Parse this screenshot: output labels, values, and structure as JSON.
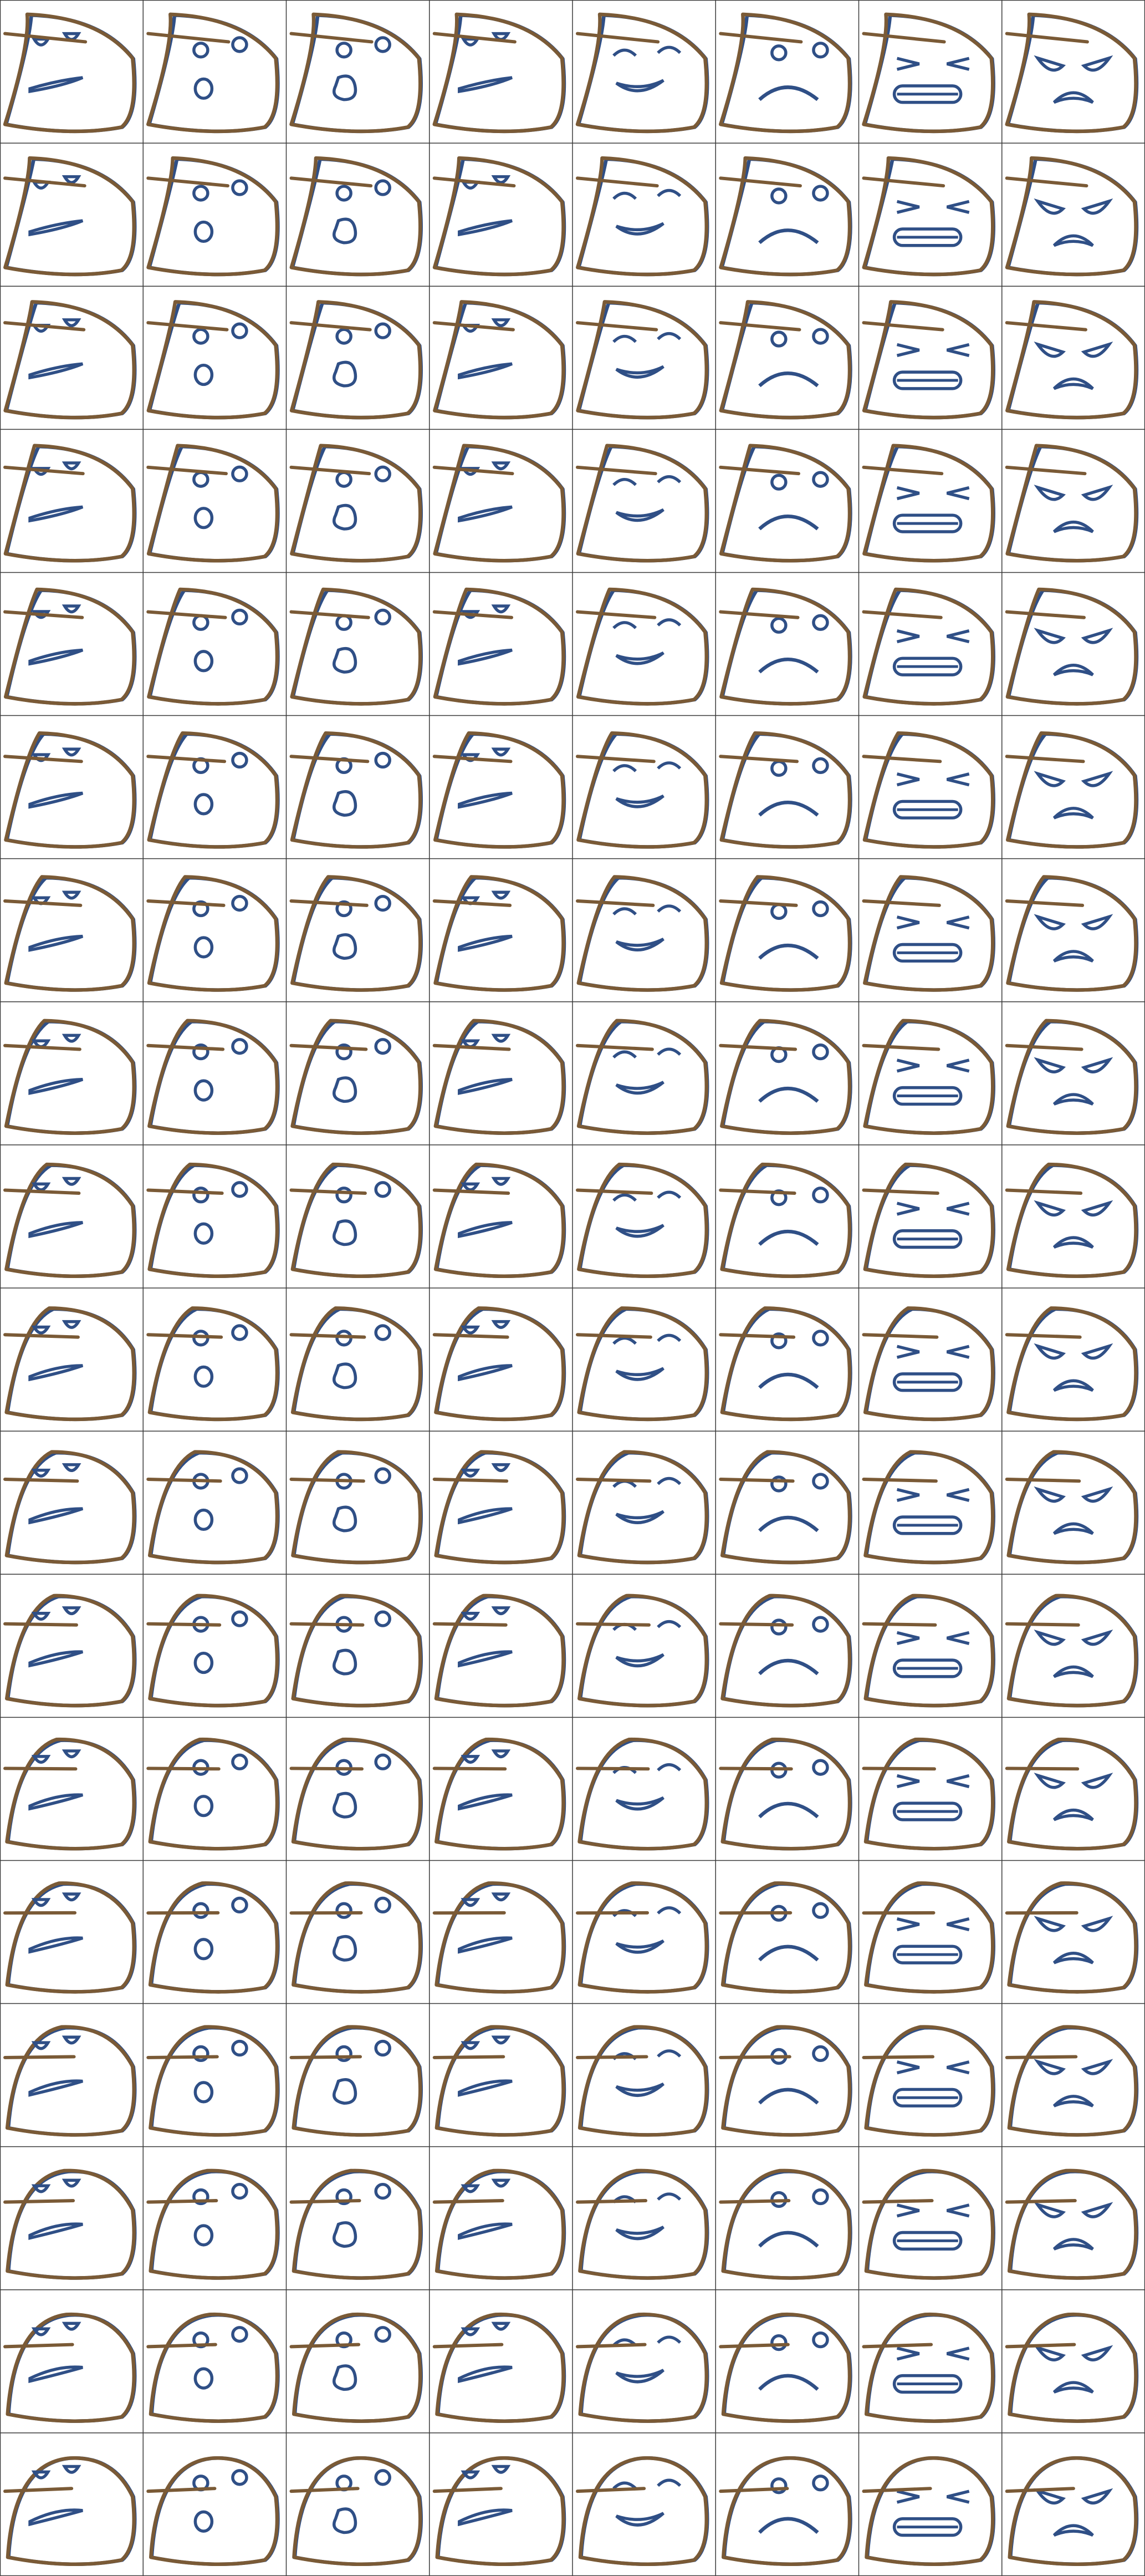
{
  "sheet": {
    "rows": 18,
    "cols": 8,
    "colors": {
      "background": "#ffffff",
      "grid": "#3a3a3a",
      "outline_brown": "#7a5a36",
      "outline_blue": "#2f4f86"
    },
    "columns": [
      {
        "face": "wince",
        "style": "skew"
      },
      {
        "face": "surprised",
        "style": "skew"
      },
      {
        "face": "gasp",
        "style": "skew"
      },
      {
        "face": "wince",
        "style": "skew"
      },
      {
        "face": "grin",
        "style": "skew"
      },
      {
        "face": "frown",
        "style": "skew"
      },
      {
        "face": "grimace",
        "style": "skew"
      },
      {
        "face": "angry",
        "style": "skew"
      }
    ]
  }
}
